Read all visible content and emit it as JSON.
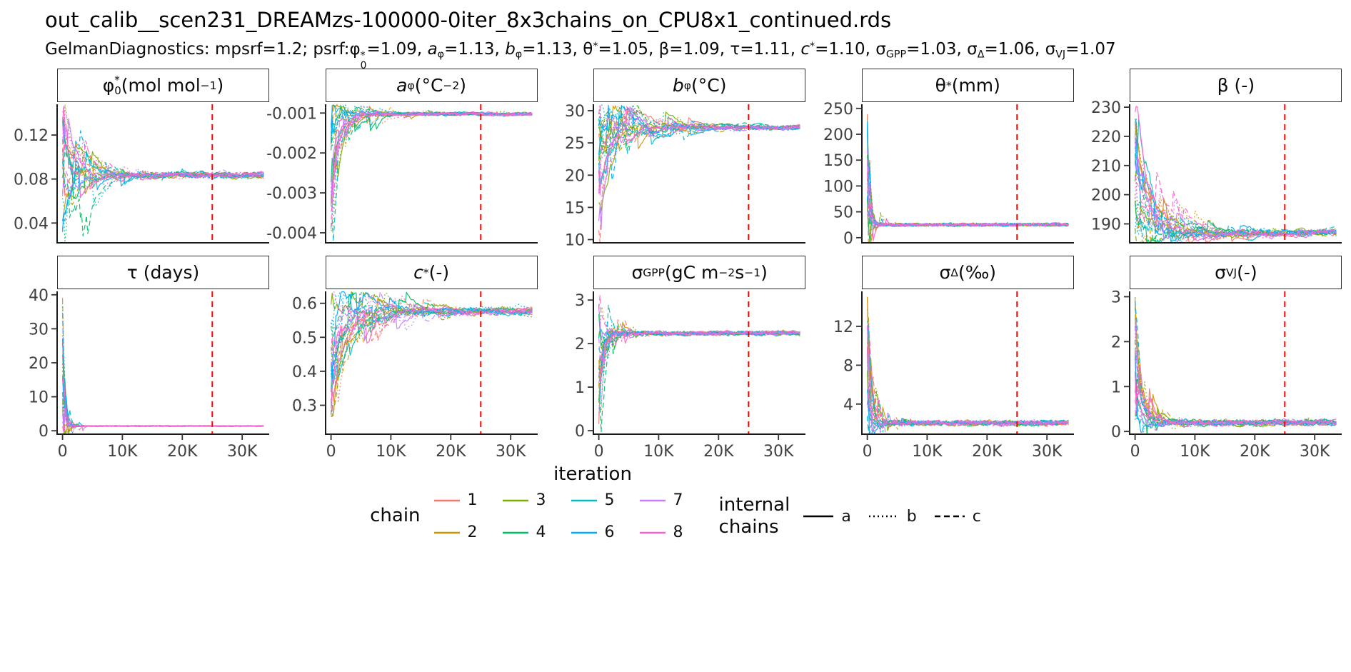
{
  "header": {
    "title": "out_calib__scen231_DREAMzs-100000-0iter_8x3chains_on_CPU8x1_continued.rds",
    "subtitle_segments": [
      {
        "t": "GelmanDiagnostics: mpsrf=1.2; psrf:"
      },
      {
        "t": "φ"
      },
      {
        "m": "stack",
        "sup": "*",
        "sub": "0"
      },
      {
        "t": "=1.09, "
      },
      {
        "t": "a",
        "i": true
      },
      {
        "t": "φ",
        "m": "sub"
      },
      {
        "t": "=1.13, "
      },
      {
        "t": "b",
        "i": true
      },
      {
        "t": "φ",
        "m": "sub"
      },
      {
        "t": "=1.13, θ"
      },
      {
        "t": "*",
        "m": "sup"
      },
      {
        "t": "=1.05, β=1.09, τ=1.11, "
      },
      {
        "t": "c",
        "i": true
      },
      {
        "t": "*",
        "m": "sup"
      },
      {
        "t": "=1.10, σ"
      },
      {
        "t": "GPP",
        "m": "sub"
      },
      {
        "t": "=1.03, σ"
      },
      {
        "t": "Δ",
        "m": "sub"
      },
      {
        "t": "=1.06, σ"
      },
      {
        "t": "VJ",
        "m": "sub"
      },
      {
        "t": "=1.07"
      }
    ]
  },
  "chart_data": {
    "type": "line",
    "description": "MCMC trace plots of 8 chains x 3 internal chains (a solid, b dotted, c dashed) for 10 calibrated parameters vs iteration; all chains converge; red dashed reference line at iteration 25000.",
    "x": {
      "label": "iteration",
      "min": -900,
      "max": 34500,
      "data_max": 33600,
      "ticks": [
        0,
        10000,
        20000,
        30000
      ],
      "tick_labels": [
        "0",
        "10K",
        "20K",
        "30K"
      ]
    },
    "vline": {
      "x": 25000,
      "color": "#FF0000",
      "style": "dashed"
    },
    "panels": [
      {
        "id": "phi0",
        "title_segments": [
          {
            "t": "φ"
          },
          {
            "m": "stack",
            "sup": "*",
            "sub": "0"
          },
          {
            "t": " (mol mol"
          },
          {
            "t": "−1",
            "m": "sup"
          },
          {
            "t": ")"
          }
        ],
        "ylim": [
          0.022,
          0.148
        ],
        "yticks": [
          0.04,
          0.08,
          0.12
        ],
        "ytick_labels": [
          "0.04",
          "0.08",
          "0.12"
        ],
        "converge": 0.0835,
        "start": [
          0.03,
          0.142
        ],
        "settle": 0.22,
        "noise": 0.0012
      },
      {
        "id": "a_phi",
        "title_segments": [
          {
            "t": "a",
            "i": true
          },
          {
            "t": "φ",
            "m": "sub"
          },
          {
            "t": " (°C"
          },
          {
            "t": "−2",
            "m": "sup"
          },
          {
            "t": ")"
          }
        ],
        "ylim": [
          -0.00425,
          -0.00078
        ],
        "yticks": [
          -0.001,
          -0.002,
          -0.003,
          -0.004
        ],
        "ytick_labels": [
          "-0.001",
          "-0.002",
          "-0.003",
          "-0.004"
        ],
        "converge": -0.00102,
        "start": [
          -0.004,
          -0.0013
        ],
        "settle": 0.18,
        "noise": 1.8e-05
      },
      {
        "id": "b_phi",
        "title_segments": [
          {
            "t": "b",
            "i": true
          },
          {
            "t": "φ",
            "m": "sub"
          },
          {
            "t": " (°C)"
          }
        ],
        "ylim": [
          9.5,
          31
        ],
        "yticks": [
          10,
          15,
          20,
          25,
          30
        ],
        "ytick_labels": [
          "10",
          "15",
          "20",
          "25",
          "30"
        ],
        "converge": 27.4,
        "start": [
          10.5,
          30.3
        ],
        "settle": 0.28,
        "noise": 0.16
      },
      {
        "id": "theta_star",
        "title_segments": [
          {
            "t": "θ"
          },
          {
            "t": "*",
            "m": "sup"
          },
          {
            "t": " (mm)"
          }
        ],
        "ylim": [
          -10,
          258
        ],
        "yticks": [
          0,
          50,
          100,
          150,
          200,
          250
        ],
        "ytick_labels": [
          "0",
          "50",
          "100",
          "150",
          "200",
          "250"
        ],
        "converge": 25,
        "start": [
          3,
          246
        ],
        "settle": 0.05,
        "noise": 2.2
      },
      {
        "id": "beta",
        "title_segments": [
          {
            "t": "β (-)"
          }
        ],
        "ylim": [
          183.5,
          231
        ],
        "yticks": [
          190,
          200,
          210,
          220,
          230
        ],
        "ytick_labels": [
          "190",
          "200",
          "210",
          "220",
          "230"
        ],
        "converge": 187,
        "start": [
          186,
          228.5
        ],
        "settle": 0.3,
        "noise": 0.45
      },
      {
        "id": "tau",
        "title_segments": [
          {
            "t": "τ (days)"
          }
        ],
        "ylim": [
          -1,
          41
        ],
        "yticks": [
          0,
          10,
          20,
          30,
          40
        ],
        "ytick_labels": [
          "0",
          "10",
          "20",
          "30",
          "40"
        ],
        "converge": 1.4,
        "start": [
          1,
          40
        ],
        "settle": 0.045,
        "noise": 0.1
      },
      {
        "id": "c_star",
        "title_segments": [
          {
            "t": "c",
            "i": true
          },
          {
            "t": "*",
            "m": "sup"
          },
          {
            "t": " (-)"
          }
        ],
        "ylim": [
          0.215,
          0.635
        ],
        "yticks": [
          0.3,
          0.4,
          0.5,
          0.6
        ],
        "ytick_labels": [
          "0.3",
          "0.4",
          "0.5",
          "0.6"
        ],
        "converge": 0.576,
        "start": [
          0.24,
          0.61
        ],
        "settle": 0.3,
        "noise": 0.004
      },
      {
        "id": "sigma_gpp",
        "title_segments": [
          {
            "t": "σ"
          },
          {
            "t": "GPP",
            "m": "sub"
          },
          {
            "t": " (gC m"
          },
          {
            "t": "−2",
            "m": "sup"
          },
          {
            "t": " s"
          },
          {
            "t": "−1",
            "m": "sup"
          },
          {
            "t": ")"
          }
        ],
        "ylim": [
          -0.08,
          3.2
        ],
        "yticks": [
          0,
          1,
          2,
          3
        ],
        "ytick_labels": [
          "0",
          "1",
          "2",
          "3"
        ],
        "converge": 2.24,
        "start": [
          0.15,
          3.05
        ],
        "settle": 0.09,
        "noise": 0.03
      },
      {
        "id": "sigma_delta",
        "title_segments": [
          {
            "t": "σ"
          },
          {
            "t": "Δ",
            "m": "sub"
          },
          {
            "t": " (‰)"
          }
        ],
        "ylim": [
          0.9,
          15.6
        ],
        "yticks": [
          4,
          8,
          12
        ],
        "ytick_labels": [
          "4",
          "8",
          "12"
        ],
        "converge": 2.05,
        "start": [
          1.2,
          15.2
        ],
        "settle": 0.08,
        "noise": 0.16
      },
      {
        "id": "sigma_vj",
        "title_segments": [
          {
            "t": "σ"
          },
          {
            "t": "VJ",
            "m": "sub"
          },
          {
            "t": " (-)"
          }
        ],
        "ylim": [
          -0.06,
          3.12
        ],
        "yticks": [
          0,
          1,
          2,
          3
        ],
        "ytick_labels": [
          "0",
          "1",
          "2",
          "3"
        ],
        "converge": 0.2,
        "start": [
          0.15,
          3.0
        ],
        "settle": 0.13,
        "noise": 0.035
      }
    ],
    "chains": {
      "label": "chain",
      "entries": [
        {
          "id": "1",
          "color": "#F8766D"
        },
        {
          "id": "2",
          "color": "#CD9600"
        },
        {
          "id": "3",
          "color": "#7CAE00"
        },
        {
          "id": "4",
          "color": "#00BE67"
        },
        {
          "id": "5",
          "color": "#00BFC4"
        },
        {
          "id": "6",
          "color": "#00A9FF"
        },
        {
          "id": "7",
          "color": "#C77CFF"
        },
        {
          "id": "8",
          "color": "#FF61CC"
        }
      ]
    },
    "internal": {
      "label_lines": [
        "internal",
        "chains"
      ],
      "entries": [
        {
          "id": "a",
          "dash": ""
        },
        {
          "id": "b",
          "dash": "2 4"
        },
        {
          "id": "c",
          "dash": "8 5"
        }
      ]
    },
    "layout": {
      "rows": 2,
      "cols": 5,
      "grid": false,
      "legend_position": "bottom"
    }
  }
}
